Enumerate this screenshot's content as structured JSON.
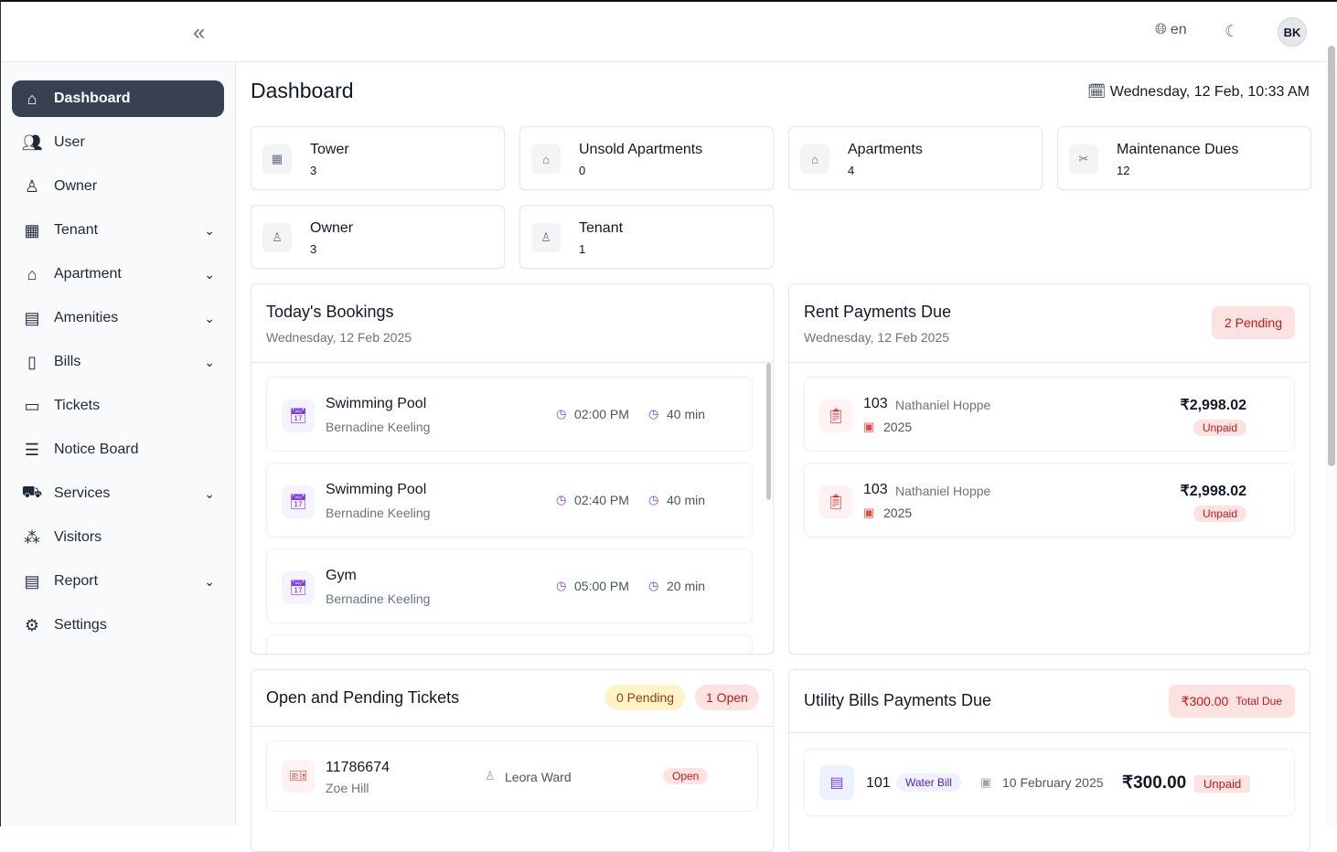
{
  "header": {
    "collapse_icon": "double-chevron-left-icon",
    "language": "en",
    "user_initials": "BK"
  },
  "sidebar": {
    "items": [
      {
        "label": "Dashboard",
        "icon": "home-icon",
        "glyph": "⌂",
        "expandable": false,
        "active": true
      },
      {
        "label": "User",
        "icon": "users-icon",
        "glyph": "👥",
        "expandable": false
      },
      {
        "label": "Owner",
        "icon": "owner-icon",
        "glyph": "♙",
        "expandable": false
      },
      {
        "label": "Tenant",
        "icon": "tenant-icon",
        "glyph": "▦",
        "expandable": true
      },
      {
        "label": "Apartment",
        "icon": "apartment-icon",
        "glyph": "⌂",
        "expandable": true
      },
      {
        "label": "Amenities",
        "icon": "building-icon",
        "glyph": "▤",
        "expandable": true
      },
      {
        "label": "Bills",
        "icon": "bill-icon",
        "glyph": "▯",
        "expandable": true
      },
      {
        "label": "Tickets",
        "icon": "ticket-icon",
        "glyph": "▭",
        "expandable": false
      },
      {
        "label": "Notice Board",
        "icon": "notice-icon",
        "glyph": "☰",
        "expandable": false
      },
      {
        "label": "Services",
        "icon": "services-icon",
        "glyph": "⛟",
        "expandable": true
      },
      {
        "label": "Visitors",
        "icon": "visitors-icon",
        "glyph": "⁂",
        "expandable": false
      },
      {
        "label": "Report",
        "icon": "report-icon",
        "glyph": "▤",
        "expandable": true
      },
      {
        "label": "Settings",
        "icon": "gear-icon",
        "glyph": "⚙",
        "expandable": false
      }
    ]
  },
  "page": {
    "title": "Dashboard",
    "datetime": "Wednesday, 12 Feb, 10:33 AM"
  },
  "stats": [
    {
      "label": "Tower",
      "value": "3",
      "icon": "building-icon"
    },
    {
      "label": "Unsold Apartments",
      "value": "0",
      "icon": "home-icon"
    },
    {
      "label": "Apartments",
      "value": "4",
      "icon": "home-icon"
    },
    {
      "label": "Maintenance Dues",
      "value": "12",
      "icon": "tools-icon"
    },
    {
      "label": "Owner",
      "value": "3",
      "icon": "owner-icon"
    },
    {
      "label": "Tenant",
      "value": "1",
      "icon": "tenant-icon"
    }
  ],
  "bookings": {
    "title": "Today's Bookings",
    "date": "Wednesday, 12 Feb 2025",
    "items": [
      {
        "amenity": "Swimming Pool",
        "person": "Bernadine Keeling",
        "time": "02:00 PM",
        "duration": "40 min"
      },
      {
        "amenity": "Swimming Pool",
        "person": "Bernadine Keeling",
        "time": "02:40 PM",
        "duration": "40 min"
      },
      {
        "amenity": "Gym",
        "person": "Bernadine Keeling",
        "time": "05:00 PM",
        "duration": "20 min"
      }
    ]
  },
  "rent": {
    "title": "Rent Payments Due",
    "date": "Wednesday, 12 Feb 2025",
    "badge": "2 Pending",
    "items": [
      {
        "unit": "103",
        "name": "Nathaniel Hoppe",
        "year": "2025",
        "amount": "₹2,998.02",
        "status": "Unpaid"
      },
      {
        "unit": "103",
        "name": "Nathaniel Hoppe",
        "year": "2025",
        "amount": "₹2,998.02",
        "status": "Unpaid"
      }
    ]
  },
  "tickets": {
    "title": "Open and Pending Tickets",
    "pending": "0 Pending",
    "open": "1 Open",
    "items": [
      {
        "id": "11786674",
        "raised_by": "Zoe Hill",
        "assignee": "Leora Ward",
        "status": "Open"
      }
    ]
  },
  "utility": {
    "title": "Utility Bills Payments Due",
    "total": "₹300.00",
    "total_label": "Total Due",
    "items": [
      {
        "unit": "101",
        "type": "Water Bill",
        "date": "10 February 2025",
        "amount": "₹300.00",
        "status": "Unpaid"
      }
    ]
  },
  "colors": {
    "active_nav": "#374151",
    "accent": "#7c3aed",
    "danger": "#b91c1c",
    "danger_bg": "#fde2e2",
    "warning_bg": "#fef3c7"
  }
}
